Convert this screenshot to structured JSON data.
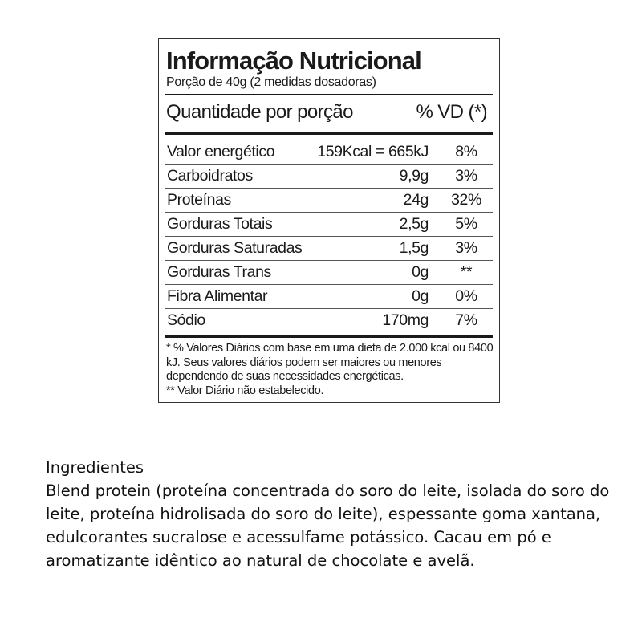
{
  "label": {
    "title": "Informação Nutricional",
    "portion": "Porção de 40g (2 medidas dosadoras)",
    "quantity_header": "Quantidade por porção",
    "vd_header": "% VD (*)",
    "rows": [
      {
        "name": "Valor energético",
        "amount": "159Kcal = 665kJ",
        "vd": "8%"
      },
      {
        "name": "Carboidratos",
        "amount": "9,9g",
        "vd": "3%"
      },
      {
        "name": "Proteínas",
        "amount": "24g",
        "vd": "32%"
      },
      {
        "name": "Gorduras Totais",
        "amount": "2,5g",
        "vd": "5%"
      },
      {
        "name": "Gorduras Saturadas",
        "amount": "1,5g",
        "vd": "3%"
      },
      {
        "name": "Gorduras Trans",
        "amount": "0g",
        "vd": "**"
      },
      {
        "name": "Fibra Alimentar",
        "amount": "0g",
        "vd": "0%"
      },
      {
        "name": "Sódio",
        "amount": "170mg",
        "vd": "7%"
      }
    ],
    "footnote": "* % Valores Diários com base em uma dieta de 2.000 kcal ou 8400 kJ. Seus valores diários podem ser maiores ou menores dependendo de suas necessidades energéticas.",
    "footnote2": "** Valor Diário não estabelecido."
  },
  "ingredients": {
    "heading": "Ingredientes",
    "text": "Blend protein (proteína concentrada do soro do leite, isolada do soro do leite, proteína hidrolisada do soro do leite), espessante goma xantana, edulcorantes sucralose e acessulfame potássico. Cacau em pó e aromatizante idêntico ao natural de chocolate e avelã."
  }
}
